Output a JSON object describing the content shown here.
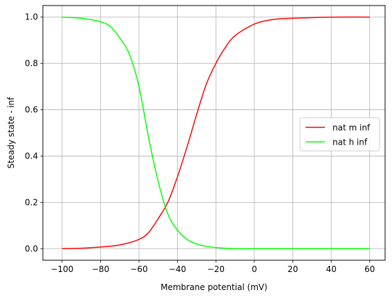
{
  "chart_data": {
    "type": "line",
    "title": "",
    "xlabel": "Membrane potential (mV)",
    "ylabel": "Steady state - inf",
    "xlim": [
      -110,
      68
    ],
    "ylim": [
      -0.05,
      1.05
    ],
    "xticks": [
      -100,
      -80,
      -60,
      -40,
      -20,
      0,
      20,
      40,
      60
    ],
    "xtick_labels": [
      "−100",
      "−80",
      "−60",
      "−40",
      "−20",
      "0",
      "20",
      "40",
      "60"
    ],
    "yticks": [
      0.0,
      0.2,
      0.4,
      0.6,
      0.8,
      1.0
    ],
    "ytick_labels": [
      "0.0",
      "0.2",
      "0.4",
      "0.6",
      "0.8",
      "1.0"
    ],
    "grid": true,
    "legend_position": "center-right",
    "series": [
      {
        "name": "nat m inf",
        "color": "#ff0000",
        "x": [
          -100,
          -90,
          -80,
          -70,
          -60,
          -55,
          -50,
          -45,
          -40,
          -35,
          -30,
          -25,
          -20,
          -15,
          -10,
          0,
          10,
          20,
          40,
          60
        ],
        "y": [
          0.0,
          0.002,
          0.007,
          0.016,
          0.04,
          0.07,
          0.13,
          0.2,
          0.31,
          0.44,
          0.58,
          0.71,
          0.8,
          0.87,
          0.92,
          0.97,
          0.99,
          0.995,
          1.0,
          1.0
        ]
      },
      {
        "name": "nat h inf",
        "color": "#00ff00",
        "x": [
          -100,
          -90,
          -80,
          -75,
          -70,
          -65,
          -60,
          -55,
          -50,
          -45,
          -40,
          -35,
          -30,
          -25,
          -20,
          -10,
          0,
          20,
          60
        ],
        "y": [
          1.0,
          0.995,
          0.98,
          0.96,
          0.91,
          0.84,
          0.7,
          0.48,
          0.29,
          0.15,
          0.08,
          0.04,
          0.02,
          0.01,
          0.005,
          0.0,
          0.0,
          0.0,
          0.0
        ]
      }
    ]
  }
}
